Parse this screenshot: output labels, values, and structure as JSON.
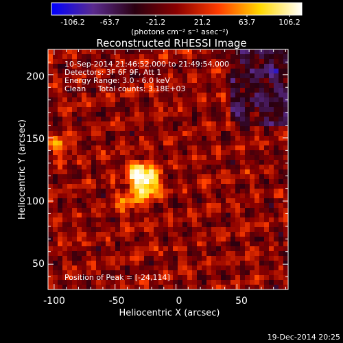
{
  "colorbar": {
    "tick_labels": [
      "-106.2",
      "-63.7",
      "-21.2",
      "21.2",
      "63.7",
      "106.2"
    ],
    "units_line": "(photons cm⁻² s⁻¹ asec⁻²)",
    "range": [
      -106.2,
      106.2
    ],
    "colors": [
      "#0000ff",
      "#5a2b8e",
      "#2a0010",
      "#8a0000",
      "#ff3c00",
      "#ffd800",
      "#ffffff"
    ]
  },
  "chart_data": {
    "type": "heatmap",
    "title": "Reconstructed RHESSI Image",
    "xlabel": "Heliocentric X (arcsec)",
    "ylabel": "Heliocentric Y (arcsec)",
    "xlim": [
      -105,
      92
    ],
    "ylim": [
      30,
      220
    ],
    "x_ticks": [
      "-100",
      "-50",
      "0",
      "50"
    ],
    "y_ticks": [
      "200",
      "150",
      "100",
      "50"
    ],
    "x_tick_values": [
      -100,
      -50,
      0,
      50
    ],
    "y_tick_values": [
      200,
      150,
      100,
      50
    ],
    "annotations": [
      "10-Sep-2014 21:46:52.000 to 21:49:54.000",
      "Detectors: 3F 6F 9F, Att 1",
      "Energy Range: 3.0 - 6.0 keV",
      "Clean     Total counts: 3.18E+03"
    ],
    "peak_label": "Position of Peak = [-24,114]",
    "peak": {
      "x": -24,
      "y": 114,
      "value": 106.2
    },
    "sources": [
      {
        "x": -24,
        "y": 114,
        "value": 106,
        "sigma": 8
      },
      {
        "x": -32,
        "y": 124,
        "value": 75,
        "sigma": 6
      },
      {
        "x": -95,
        "y": 143,
        "value": 60,
        "sigma": 5
      },
      {
        "x": -40,
        "y": 100,
        "value": 45,
        "sigma": 7
      }
    ]
  },
  "footer": {
    "timestamp": "19-Dec-2014 20:25"
  }
}
